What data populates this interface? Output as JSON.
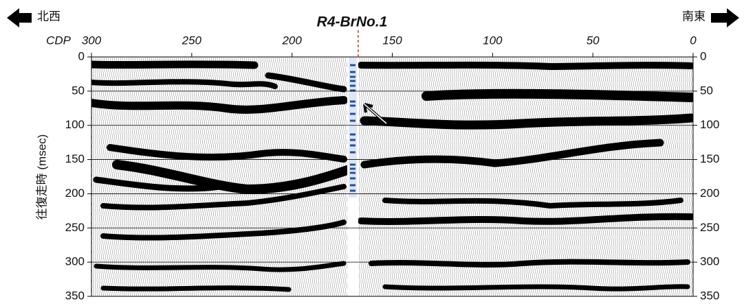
{
  "chart_data": {
    "type": "seismic",
    "title": "R4-BrNo.1",
    "left_direction": "北西",
    "right_direction": "南東",
    "x_label": "CDP",
    "y_label": "往復走時 (msec)",
    "xlim": [
      300,
      0
    ],
    "xticks": [
      300,
      250,
      200,
      150,
      100,
      50,
      0
    ],
    "ylim": [
      0,
      350
    ],
    "yticks": [
      0,
      50,
      100,
      150,
      200,
      250,
      300,
      350
    ],
    "grid": true,
    "borehole_x": 167
  }
}
